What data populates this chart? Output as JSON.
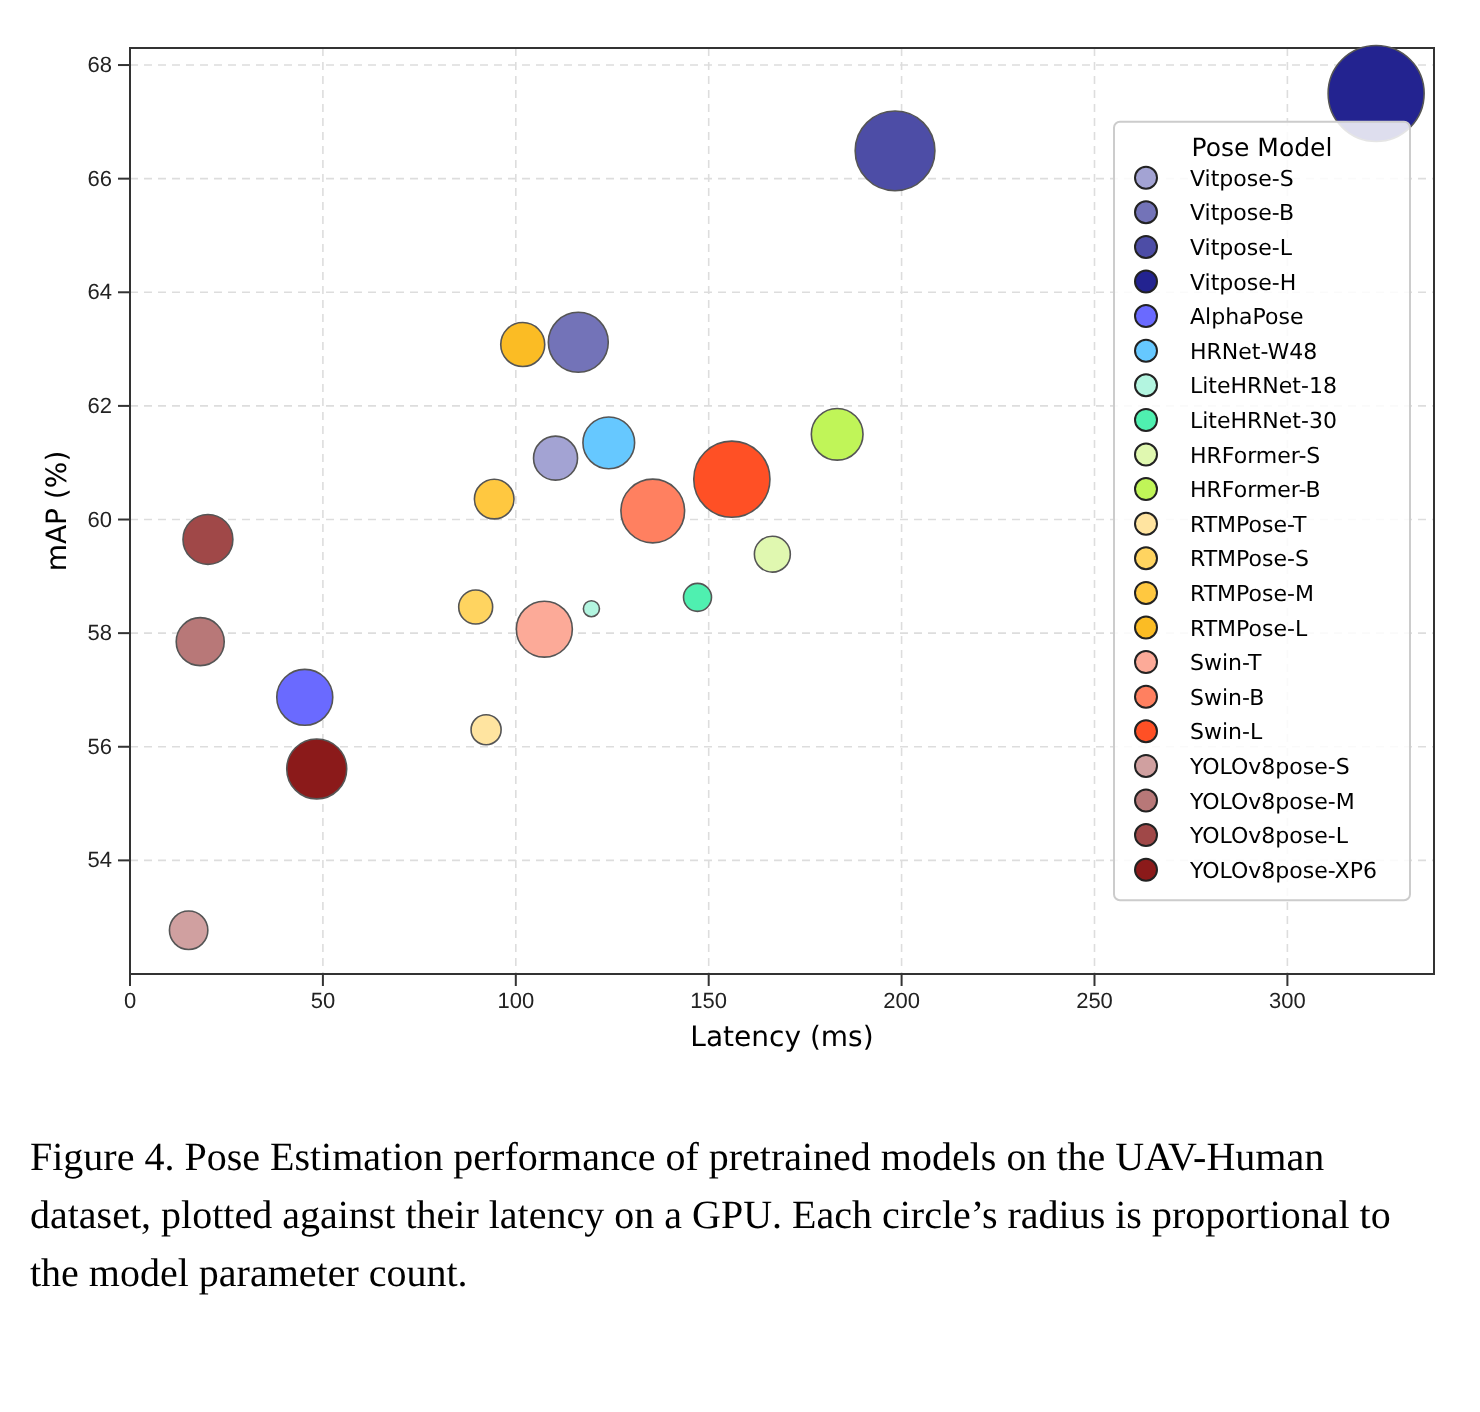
{
  "chart_data": {
    "type": "bubble",
    "xlabel": "Latency (ms)",
    "ylabel": "mAP (%)",
    "legend_title": "Pose Model",
    "legend": "right",
    "grid": true,
    "line_style": "dashed",
    "xlim": [
      0,
      338
    ],
    "ylim": [
      52,
      68.3
    ],
    "xticks": [
      0,
      50,
      100,
      150,
      200,
      250,
      300
    ],
    "yticks": [
      54,
      56,
      58,
      60,
      62,
      64,
      66,
      68
    ],
    "series": [
      {
        "name": "Vitpose-S",
        "color": "#a3a3d3",
        "x": [
          110.3
        ],
        "values": [
          61.08
        ],
        "sizes": [
          0.21
        ]
      },
      {
        "name": "Vitpose-B",
        "color": "#7373b8",
        "x": [
          116.2
        ],
        "values": [
          63.12
        ],
        "sizes": [
          0.39
        ]
      },
      {
        "name": "Vitpose-L",
        "color": "#4d4da6",
        "x": [
          198.3
        ],
        "values": [
          66.49
        ],
        "sizes": [
          0.69
        ]
      },
      {
        "name": "Vitpose-H",
        "color": "#232390",
        "x": [
          323
        ],
        "values": [
          67.5
        ],
        "sizes": [
          1
        ]
      },
      {
        "name": "AlphaPose",
        "color": "#6a6aff",
        "x": [
          45.3
        ],
        "values": [
          56.87
        ],
        "sizes": [
          0.34
        ]
      },
      {
        "name": "HRNet-W48",
        "color": "#66c8ff",
        "x": [
          124.1
        ],
        "values": [
          61.35
        ],
        "sizes": [
          0.29
        ]
      },
      {
        "name": "LiteHRNet-18",
        "color": "#b3f5e0",
        "x": [
          119.6
        ],
        "values": [
          58.43
        ],
        "sizes": [
          0.028
        ]
      },
      {
        "name": "LiteHRNet-30",
        "color": "#4ff0b0",
        "x": [
          147.1
        ],
        "values": [
          58.63
        ],
        "sizes": [
          0.085
        ]
      },
      {
        "name": "HRFormer-S",
        "color": "#e0f8b0",
        "x": [
          166.5
        ],
        "values": [
          59.39
        ],
        "sizes": [
          0.14
        ]
      },
      {
        "name": "HRFormer-B",
        "color": "#c0f558",
        "x": [
          183.3
        ],
        "values": [
          61.5
        ],
        "sizes": [
          0.29
        ]
      },
      {
        "name": "RTMPose-T",
        "color": "#ffe4a0",
        "x": [
          92.3
        ],
        "values": [
          56.3
        ],
        "sizes": [
          0.098
        ]
      },
      {
        "name": "RTMPose-S",
        "color": "#ffd460",
        "x": [
          89.6
        ],
        "values": [
          58.46
        ],
        "sizes": [
          0.125
        ]
      },
      {
        "name": "RTMPose-M",
        "color": "#ffc840",
        "x": [
          94.4
        ],
        "values": [
          60.36
        ],
        "sizes": [
          0.17
        ]
      },
      {
        "name": "RTMPose-L",
        "color": "#fbbc24",
        "x": [
          101.8
        ],
        "values": [
          63.08
        ],
        "sizes": [
          0.21
        ]
      },
      {
        "name": "Swin-T",
        "color": "#fcaa98",
        "x": [
          107.4
        ],
        "values": [
          58.07
        ],
        "sizes": [
          0.34
        ]
      },
      {
        "name": "Swin-B",
        "color": "#ff8060",
        "x": [
          135.5
        ],
        "values": [
          60.15
        ],
        "sizes": [
          0.44
        ]
      },
      {
        "name": "Swin-L",
        "color": "#ff5025",
        "x": [
          156
        ],
        "values": [
          60.71
        ],
        "sizes": [
          0.63
        ]
      },
      {
        "name": "YOLOv8pose-S",
        "color": "#d0a0a0",
        "x": [
          15.2
        ],
        "values": [
          52.77
        ],
        "sizes": [
          0.16
        ]
      },
      {
        "name": "YOLOv8pose-M",
        "color": "#b87878",
        "x": [
          18.2
        ],
        "values": [
          57.85
        ],
        "sizes": [
          0.25
        ]
      },
      {
        "name": "YOLOv8pose-L",
        "color": "#a04848",
        "x": [
          20.2
        ],
        "values": [
          59.65
        ],
        "sizes": [
          0.27
        ]
      },
      {
        "name": "YOLOv8pose-XP6",
        "color": "#8b1a1a",
        "x": [
          48.4
        ],
        "values": [
          55.61
        ],
        "sizes": [
          0.39
        ]
      }
    ],
    "annotations": [
      "Figure 4.  Pose Estimation performance of pretrained models on the UAV-Human dataset, plotted against their latency on a GPU. Each circle’s radius is proportional to the model parameter count."
    ]
  }
}
